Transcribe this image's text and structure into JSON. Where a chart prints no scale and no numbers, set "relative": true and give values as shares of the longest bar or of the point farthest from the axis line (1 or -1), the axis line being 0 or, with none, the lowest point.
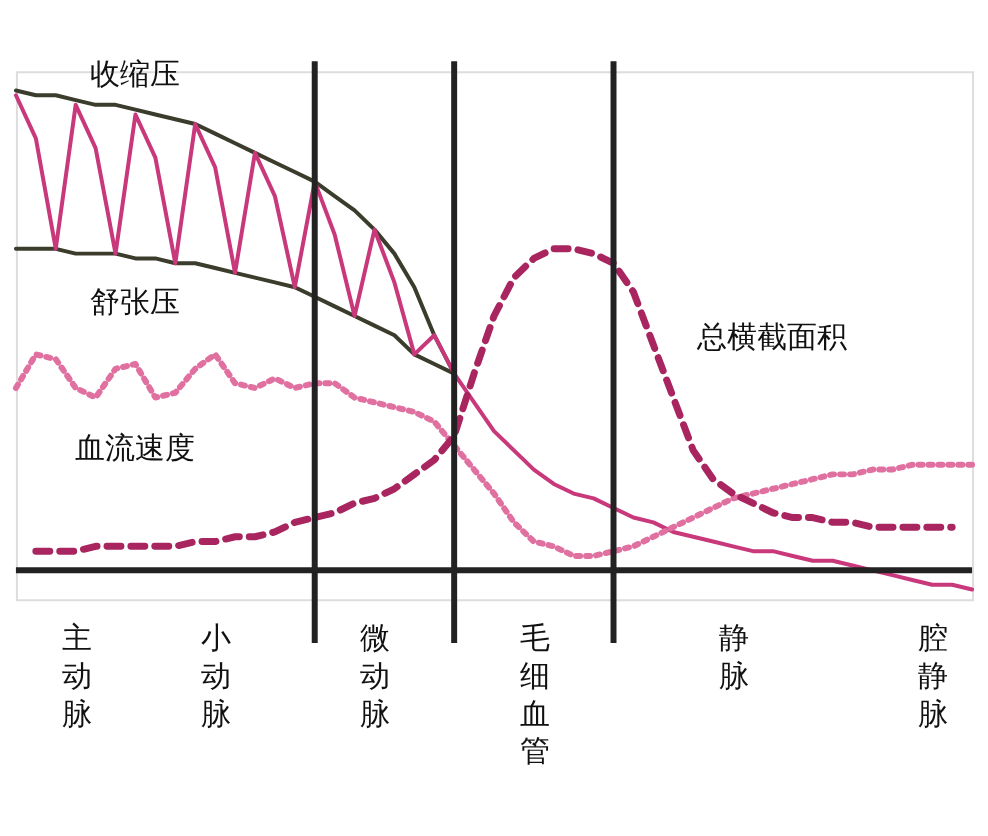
{
  "chart_data": {
    "type": "line",
    "relative": true,
    "categories": [
      null,
      null,
      null,
      "主动脉",
      null,
      null,
      null,
      null,
      null,
      null,
      "小动脉",
      null,
      null,
      null,
      null,
      null,
      null,
      null,
      "微动脉",
      null,
      null,
      null,
      null,
      null,
      null,
      null,
      "毛细血管",
      null,
      null,
      null,
      null,
      null,
      null,
      null,
      null,
      null,
      "静脉",
      null,
      null,
      null,
      null,
      null,
      null,
      null,
      null,
      null,
      "腔静脉",
      null,
      null
    ],
    "grid": false,
    "legend": false,
    "marker": "none",
    "series": [
      {
        "name": "收缩压",
        "color": "#3c3c2c",
        "line_style": "solid",
        "values": [
          1.0,
          0.99,
          0.99,
          0.98,
          0.97,
          0.97,
          0.96,
          0.95,
          0.94,
          0.93,
          0.91,
          0.89,
          0.87,
          0.85,
          0.83,
          0.81,
          0.78,
          0.75,
          0.71,
          0.66,
          0.59,
          0.49,
          0.41,
          null,
          null,
          null,
          null,
          null,
          null,
          null,
          null,
          null,
          null,
          null,
          null,
          null,
          null,
          null,
          null,
          null,
          null,
          null,
          null,
          null,
          null,
          null,
          null,
          null,
          null
        ]
      },
      {
        "name": "舒张压",
        "color": "#3c3c2c",
        "line_style": "solid",
        "values": [
          0.67,
          0.67,
          0.67,
          0.66,
          0.66,
          0.66,
          0.65,
          0.65,
          0.64,
          0.64,
          0.63,
          0.62,
          0.61,
          0.6,
          0.59,
          0.57,
          0.55,
          0.53,
          0.51,
          0.49,
          0.45,
          0.43,
          0.41,
          null,
          null,
          null,
          null,
          null,
          null,
          null,
          null,
          null,
          null,
          null,
          null,
          null,
          null,
          null,
          null,
          null,
          null,
          null,
          null,
          null,
          null,
          null,
          null,
          null,
          null
        ]
      },
      {
        "color": "#c8387a",
        "line_style": "solid",
        "values": [
          0.99,
          0.9,
          0.67,
          0.97,
          0.88,
          0.66,
          0.95,
          0.86,
          0.64,
          0.93,
          0.84,
          0.62,
          0.87,
          0.78,
          0.59,
          0.81,
          0.7,
          0.53,
          0.71,
          0.6,
          0.45,
          0.49,
          0.41,
          0.35,
          0.29,
          0.25,
          0.21,
          0.18,
          0.16,
          0.15,
          0.13,
          0.11,
          0.1,
          0.08,
          0.07,
          0.06,
          0.05,
          0.04,
          0.04,
          0.03,
          0.02,
          0.02,
          0.01,
          0.0,
          -0.01,
          -0.02,
          -0.03,
          -0.03,
          -0.04
        ]
      },
      {
        "name": "血流速度",
        "color": "#e070a0",
        "line_style": "dotted",
        "values": [
          0.38,
          0.45,
          0.44,
          0.38,
          0.36,
          0.42,
          0.43,
          0.36,
          0.37,
          0.42,
          0.45,
          0.39,
          0.38,
          0.4,
          0.38,
          0.39,
          0.39,
          0.36,
          0.35,
          0.34,
          0.33,
          0.31,
          0.26,
          0.21,
          0.16,
          0.1,
          0.06,
          0.05,
          0.03,
          0.03,
          0.04,
          0.05,
          0.07,
          0.09,
          0.11,
          0.13,
          0.15,
          0.16,
          0.17,
          0.18,
          0.19,
          0.2,
          0.2,
          0.21,
          0.21,
          0.22,
          0.22,
          0.22,
          0.22
        ]
      },
      {
        "name": "总横截面积",
        "color": "#a82560",
        "line_style": "dashed",
        "values": [
          null,
          0.04,
          0.04,
          0.04,
          0.05,
          0.05,
          0.05,
          0.05,
          0.05,
          0.06,
          0.06,
          0.07,
          0.07,
          0.08,
          0.1,
          0.11,
          0.12,
          0.14,
          0.15,
          0.17,
          0.2,
          0.23,
          0.28,
          0.41,
          0.53,
          0.61,
          0.65,
          0.67,
          0.67,
          0.66,
          0.64,
          0.58,
          0.47,
          0.36,
          0.25,
          0.19,
          0.16,
          0.14,
          0.12,
          0.11,
          0.11,
          0.1,
          0.1,
          0.09,
          0.09,
          0.09,
          0.09,
          0.09,
          null
        ]
      }
    ]
  }
}
